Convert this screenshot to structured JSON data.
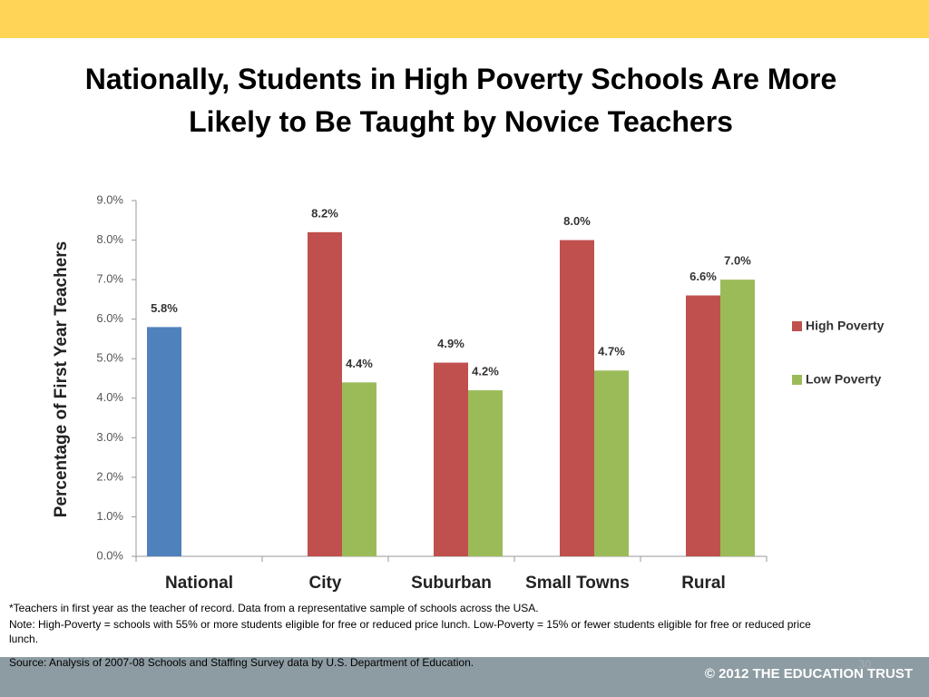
{
  "chart_data": {
    "type": "bar",
    "title": "Nationally, Students in High Poverty Schools Are More Likely to Be Taught by Novice Teachers",
    "y_label": "Percentage of First Year Teachers",
    "categories": [
      "National",
      "City",
      "Suburban",
      "Small Towns",
      "Rural"
    ],
    "series": [
      {
        "color": "#4f81bd",
        "values": [
          5.8,
          null,
          null,
          null,
          null
        ],
        "value_labels": [
          "5.8%",
          null,
          null,
          null,
          null
        ]
      },
      {
        "name": "High Poverty",
        "color": "#c0504d",
        "values": [
          null,
          8.2,
          4.9,
          8.0,
          6.6
        ],
        "value_labels": [
          null,
          "8.2%",
          "4.9%",
          "8.0%",
          "6.6%"
        ]
      },
      {
        "name": "Low Poverty",
        "color": "#9bbb59",
        "values": [
          null,
          4.4,
          4.2,
          4.7,
          7.0
        ],
        "value_labels": [
          null,
          "4.4%",
          "4.2%",
          "4.7%",
          "7.0%"
        ]
      }
    ],
    "ylim": [
      0,
      9
    ],
    "yticks": [
      {
        "value": 0,
        "label": "0.0%"
      },
      {
        "value": 1,
        "label": "1.0%"
      },
      {
        "value": 2,
        "label": "2.0%"
      },
      {
        "value": 3,
        "label": "3.0%"
      },
      {
        "value": 4,
        "label": "4.0%"
      },
      {
        "value": 5,
        "label": "5.0%"
      },
      {
        "value": 6,
        "label": "6.0%"
      },
      {
        "value": 7,
        "label": "7.0%"
      },
      {
        "value": 8,
        "label": "8.0%"
      },
      {
        "value": 9,
        "label": "9.0%"
      }
    ],
    "grid": false,
    "legend": "right"
  },
  "notes": [
    "*Teachers in first year as the teacher of record.  Data from a representative sample of schools across the USA.",
    "Note: High-Poverty = schools with 55% or more students eligible for free or reduced price lunch.  Low-Poverty = 15% or fewer students eligible for free or reduced price",
    "lunch."
  ],
  "source": "Source: Analysis of 2007-08 Schools and Staffing Survey data by U.S. Department of Education.",
  "page_number": "30",
  "footer": "© 2012 THE EDUCATION TRUST"
}
